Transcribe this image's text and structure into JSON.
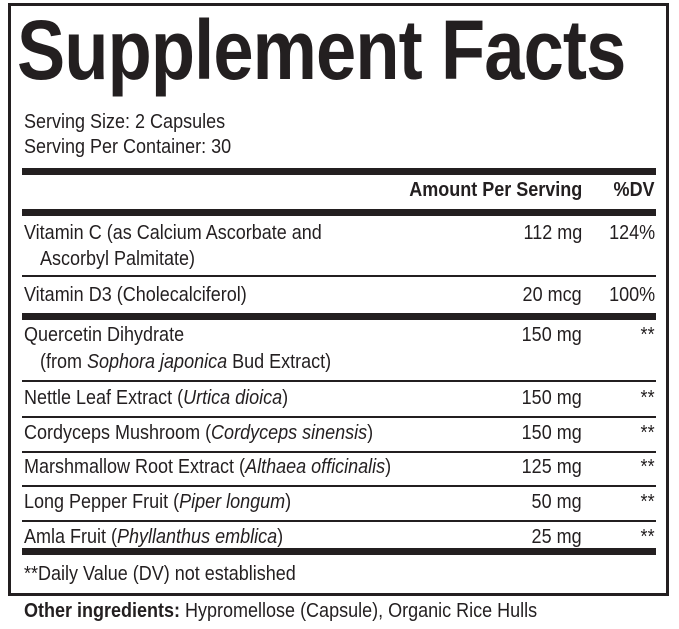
{
  "title": "Supplement Facts",
  "serving": {
    "size": "Serving Size: 2 Capsules",
    "per_container": "Serving Per Container: 30"
  },
  "header": {
    "amount": "Amount Per Serving",
    "dv": "%DV"
  },
  "rows": [
    {
      "line1": "Vitamin C (as Calcium Ascorbate and",
      "line2": "Ascorbyl Palmitate)",
      "amount": "112 mg",
      "dv": "124%"
    },
    {
      "name": "Vitamin D3 (Cholecalciferol)",
      "amount": "20 mcg",
      "dv": "100%"
    },
    {
      "line1": "Quercetin Dihydrate",
      "line2_pre": "(from ",
      "line2_italic": "Sophora japonica",
      "line2_post": " Bud Extract)",
      "amount": "150 mg",
      "dv": "**"
    },
    {
      "pre": "Nettle Leaf Extract (",
      "italic": "Urtica dioica",
      "post": ")",
      "amount": "150 mg",
      "dv": "**"
    },
    {
      "pre": "Cordyceps Mushroom (",
      "italic": "Cordyceps sinensis",
      "post": ")",
      "amount": "150 mg",
      "dv": "**"
    },
    {
      "pre": "Marshmallow Root Extract (",
      "italic": "Althaea officinalis",
      "post": ")",
      "amount": "125 mg",
      "dv": "**"
    },
    {
      "pre": "Long Pepper Fruit (",
      "italic": "Piper longum",
      "post": ")",
      "amount": "50 mg",
      "dv": "**"
    },
    {
      "pre": "Amla Fruit (",
      "italic": "Phyllanthus emblica",
      "post": ")",
      "amount": "25 mg",
      "dv": "**"
    }
  ],
  "footnote": "**Daily Value (DV) not established",
  "other": {
    "label": "Other ingredients:",
    "value": " Hypromellose (Capsule), Organic Rice Hulls"
  }
}
